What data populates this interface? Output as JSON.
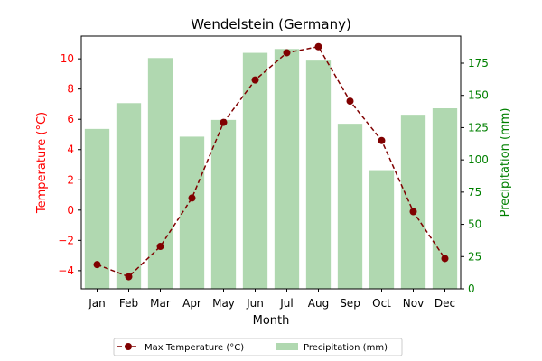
{
  "chart_data": {
    "type": "bar",
    "title": "Wendelstein (Germany)",
    "xlabel": "Month",
    "categories": [
      "Jan",
      "Feb",
      "Mar",
      "Apr",
      "May",
      "Jun",
      "Jul",
      "Aug",
      "Sep",
      "Oct",
      "Nov",
      "Dec"
    ],
    "y_left": {
      "label": "Temperature (°C)",
      "range": [
        -5.2,
        11.5
      ],
      "ticks": [
        -4,
        -2,
        0,
        2,
        4,
        6,
        8,
        10
      ],
      "tick_labels": [
        "−4",
        "−2",
        "0",
        "2",
        "4",
        "6",
        "8",
        "10"
      ],
      "color": "#ff0000"
    },
    "y_right": {
      "label": "Precipitation (mm)",
      "range": [
        0,
        196
      ],
      "ticks": [
        0,
        25,
        50,
        75,
        100,
        125,
        150,
        175
      ],
      "tick_labels": [
        "0",
        "25",
        "50",
        "75",
        "100",
        "125",
        "150",
        "175"
      ],
      "color": "#008000"
    },
    "series": [
      {
        "name": "Max Temperature (°C)",
        "type": "line",
        "axis": "left",
        "color": "#800000",
        "style": "dashed",
        "marker": "circle",
        "values": [
          -3.6,
          -4.4,
          -2.4,
          0.8,
          5.8,
          8.6,
          10.4,
          10.8,
          7.2,
          4.6,
          -0.1,
          -3.2
        ]
      },
      {
        "name": "Precipitation (mm)",
        "type": "bar",
        "axis": "right",
        "color": "#b0d8b0",
        "values": [
          124,
          144,
          179,
          118,
          131,
          183,
          186,
          177,
          128,
          92,
          135,
          140
        ]
      }
    ],
    "legend": {
      "position": "bottom-center",
      "entries": [
        "Max Temperature (°C)",
        "Precipitation (mm)"
      ]
    },
    "grid": false
  }
}
